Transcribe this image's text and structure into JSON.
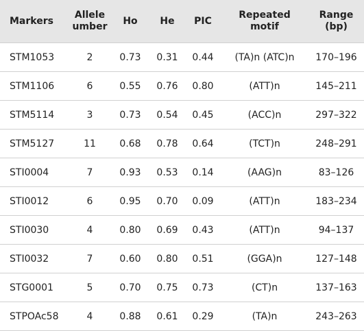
{
  "table": {
    "header": [
      "Markers",
      "Allele\number",
      "Ho",
      "He",
      "PIC",
      "Repeated\nmotif",
      "Range\n(bp)"
    ],
    "rows": [
      [
        "STM1053",
        "2",
        "0.73",
        "0.31",
        "0.44",
        "(TA)n (ATC)n",
        "170–196"
      ],
      [
        "STM1106",
        "6",
        "0.55",
        "0.76",
        "0.80",
        "(ATT)n",
        "145–211"
      ],
      [
        "STM5114",
        "3",
        "0.73",
        "0.54",
        "0.45",
        "(ACC)n",
        "297–322"
      ],
      [
        "STM5127",
        "11",
        "0.68",
        "0.78",
        "0.64",
        "(TCT)n",
        "248–291"
      ],
      [
        "STI0004",
        "7",
        "0.93",
        "0.53",
        "0.14",
        "(AAG)n",
        "83–126"
      ],
      [
        "STI0012",
        "6",
        "0.95",
        "0.70",
        "0.09",
        "(ATT)n",
        "183–234"
      ],
      [
        "STI0030",
        "4",
        "0.80",
        "0.69",
        "0.43",
        "(ATT)n",
        "94–137"
      ],
      [
        "STI0032",
        "7",
        "0.60",
        "0.80",
        "0.51",
        "(GGA)n",
        "127–148"
      ],
      [
        "STG0001",
        "5",
        "0.70",
        "0.75",
        "0.73",
        "(CT)n",
        "137–163"
      ],
      [
        "STPOAc58",
        "4",
        "0.88",
        "0.61",
        "0.29",
        "(TA)n",
        "243–263"
      ]
    ]
  }
}
